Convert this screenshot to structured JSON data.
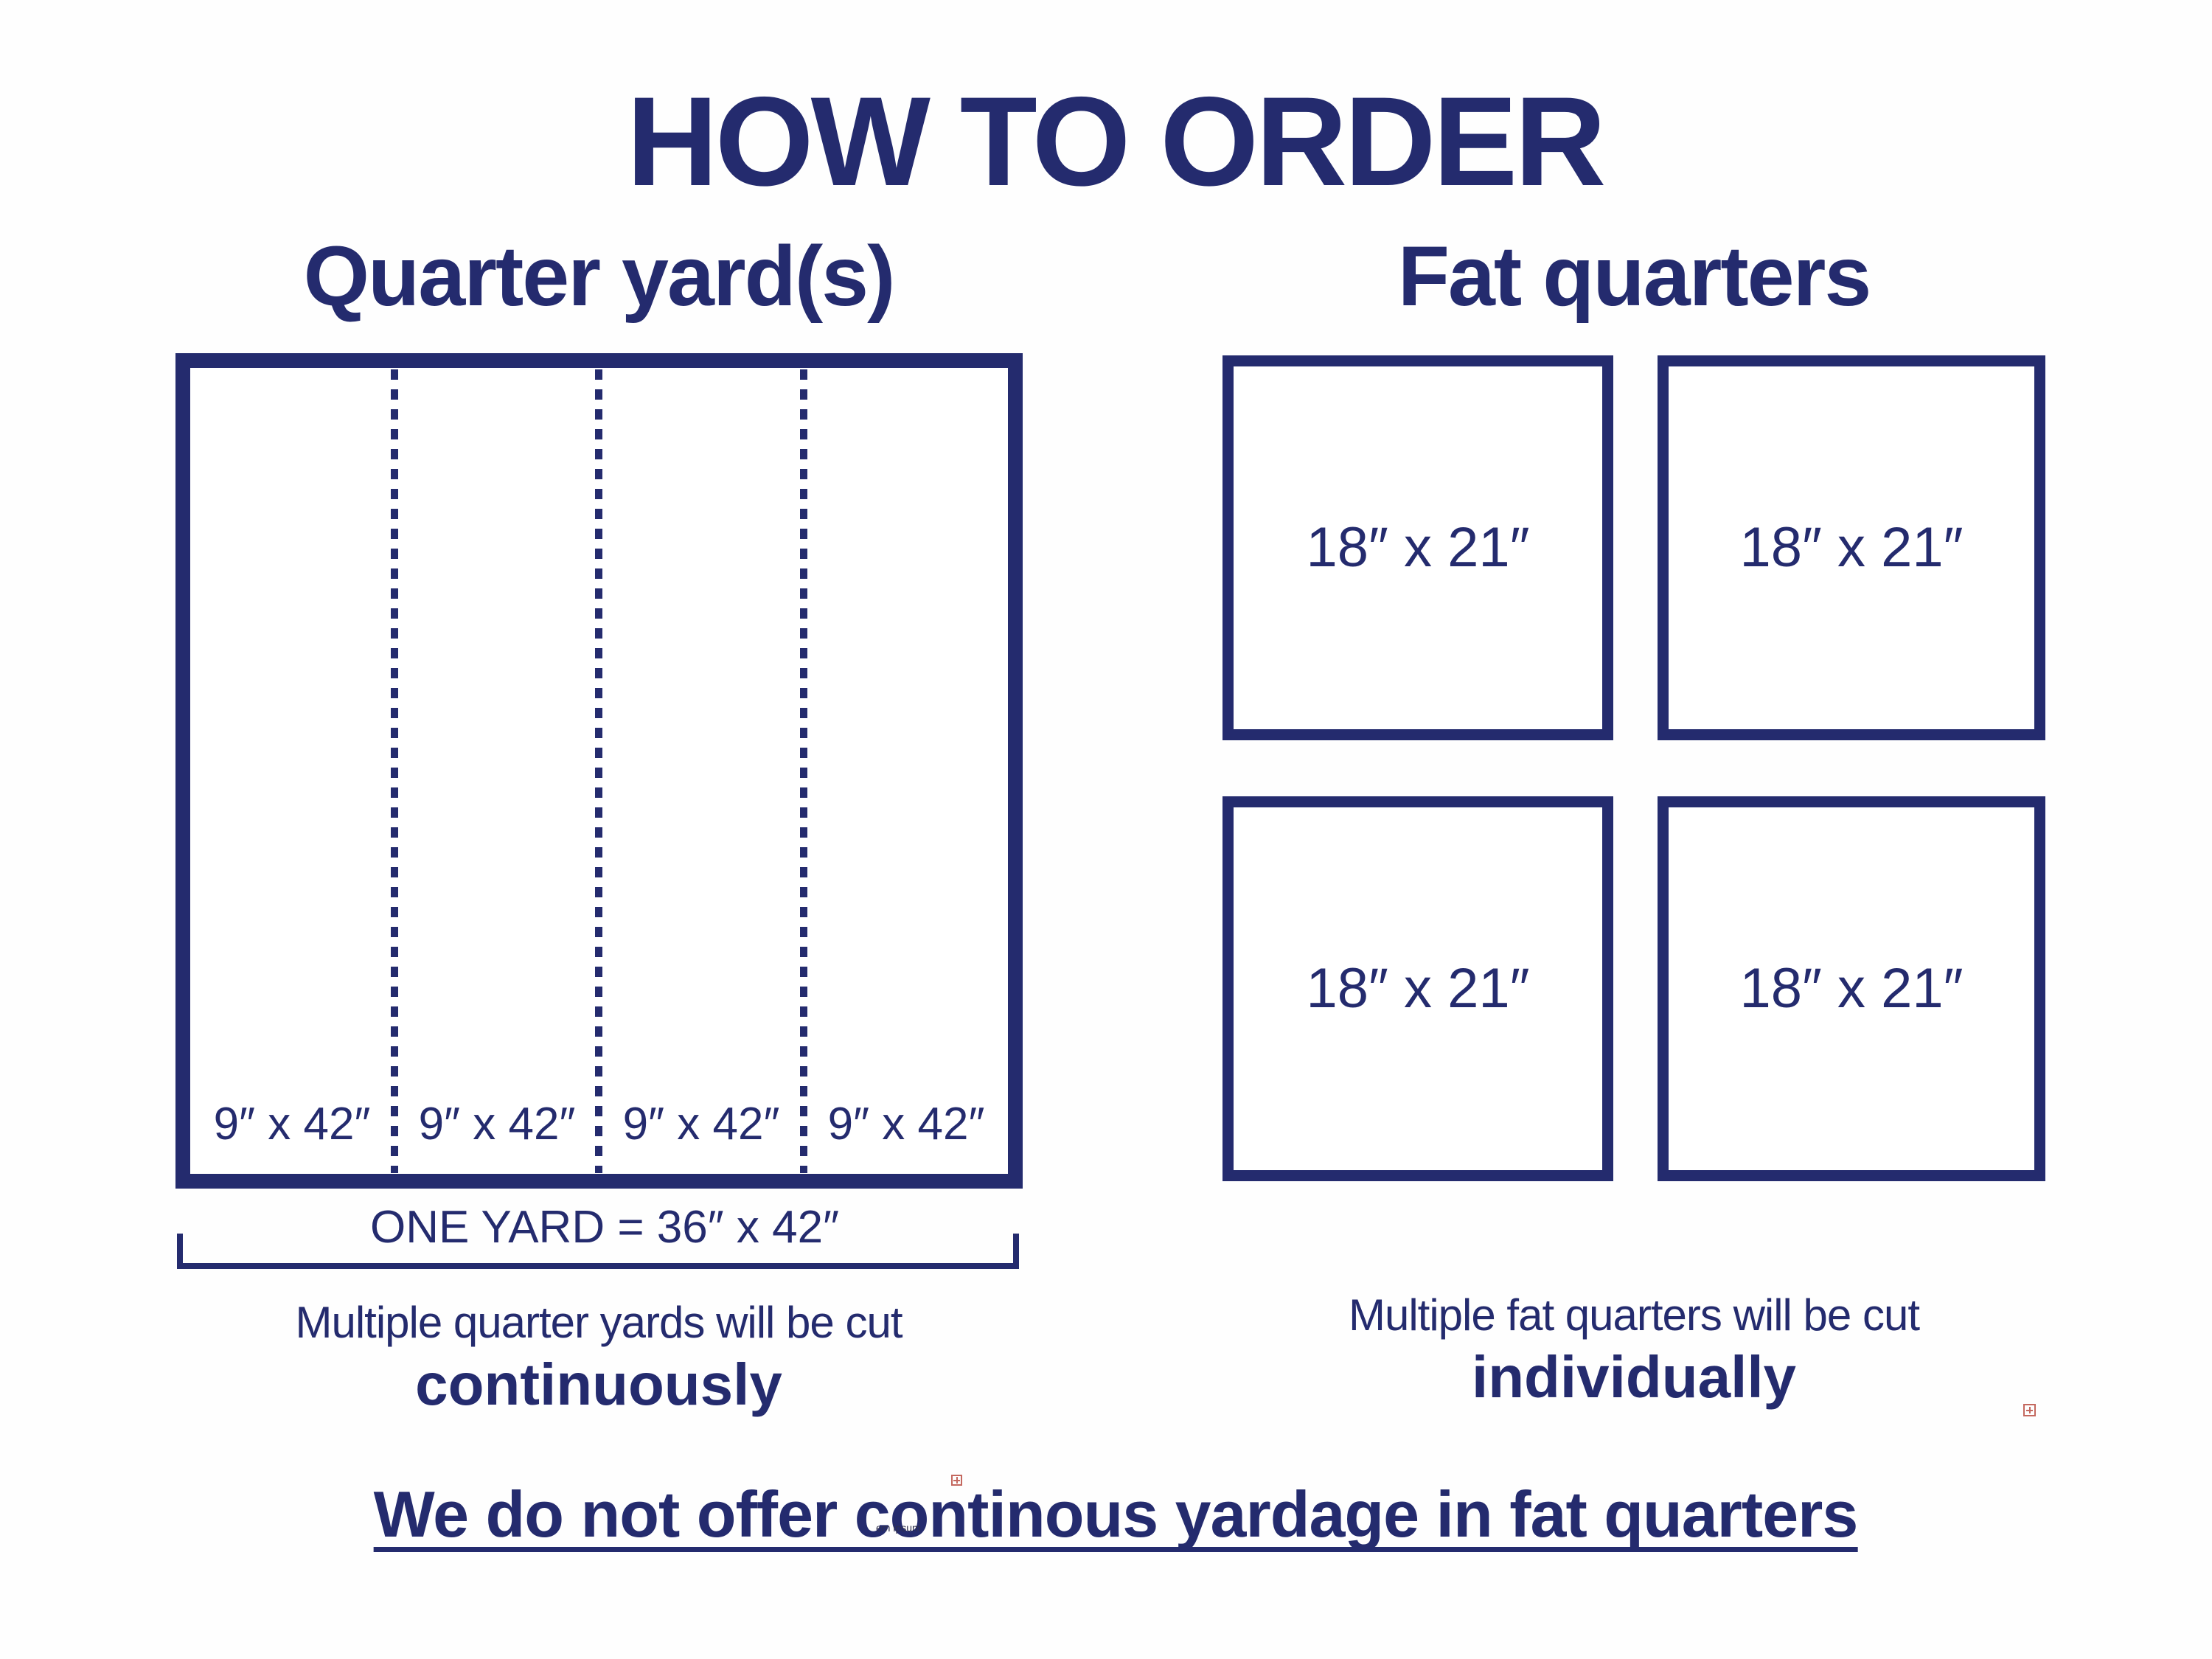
{
  "colors": {
    "navy": "#242b6e",
    "placeholder_red": "#c4685f"
  },
  "icons": {
    "placeholder": "squared-plus-icon"
  },
  "title": "HOW TO ORDER",
  "quarter_section": {
    "heading": "Quarter yard(s)",
    "strip_labels": [
      "9″ x 42″",
      "9″ x 42″",
      "9″ x 42″",
      "9″ x 42″"
    ],
    "yard_note": "ONE YARD = 36″ x 42″",
    "cut_note_line1": "Multiple quarter yards will be cut",
    "cut_note_line2": "continuously"
  },
  "fat_quarters_section": {
    "heading": "Fat quarters",
    "box_labels": [
      "18″ x 21″",
      "18″ x 21″",
      "18″ x 21″",
      "18″ x 21″"
    ],
    "cut_note_line1": "Multiple fat quarters will be cut",
    "cut_note_line2": "individually"
  },
  "footer_note": "We do not offer continous yardage in fat quarters",
  "artifacts": {
    "micro_text": "em ipsum"
  }
}
